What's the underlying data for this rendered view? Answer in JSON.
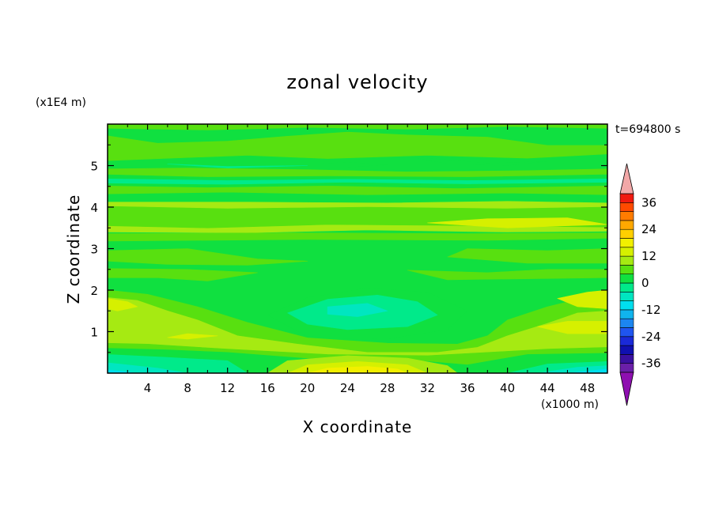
{
  "chart_data": {
    "type": "heatmap",
    "title": "zonal velocity",
    "xlabel": "X coordinate",
    "ylabel": "Z coordinate",
    "x_unit": "(x1000 m)",
    "y_unit": "(x1E4 m)",
    "time_label": "t=694800 s",
    "xlim": [
      0,
      50
    ],
    "ylim": [
      0,
      6
    ],
    "x_ticks": [
      "4",
      "8",
      "12",
      "16",
      "20",
      "24",
      "28",
      "32",
      "36",
      "40",
      "44",
      "48"
    ],
    "y_ticks": [
      "1",
      "2",
      "3",
      "4",
      "5"
    ],
    "colorbar": {
      "levels": [
        -40,
        -36,
        -32,
        -28,
        -24,
        -20,
        -16,
        -12,
        -8,
        -4,
        0,
        4,
        8,
        12,
        16,
        20,
        24,
        28,
        32,
        36,
        40
      ],
      "colors": [
        "#6a1fa8",
        "#3a10a0",
        "#1010b0",
        "#1a2ad8",
        "#1f55f0",
        "#1c86f0",
        "#10b4ee",
        "#00dfee",
        "#00e6c0",
        "#00ea8a",
        "#10e040",
        "#58e010",
        "#a6ea12",
        "#d6f000",
        "#f2f000",
        "#ffd000",
        "#ffa800",
        "#ff7c00",
        "#ff4a00",
        "#f01a10"
      ],
      "under_color": "#8e0fb0",
      "over_color": "#f2a8a8",
      "labels": [
        "36",
        "24",
        "12",
        "0",
        "-12",
        "-24",
        "-36"
      ]
    },
    "regions": [
      {
        "level": 4,
        "poly": [
          [
            0,
            5.12
          ],
          [
            14,
            5.25
          ],
          [
            22,
            5.17
          ],
          [
            32,
            5.25
          ],
          [
            42,
            5.18
          ],
          [
            50,
            5.28
          ],
          [
            50,
            6
          ],
          [
            0,
            6
          ]
        ]
      },
      {
        "level": 0,
        "poly": [
          [
            0,
            5.73
          ],
          [
            5,
            5.55
          ],
          [
            12,
            5.6
          ],
          [
            18,
            5.72
          ],
          [
            24,
            5.82
          ],
          [
            30,
            5.75
          ],
          [
            38,
            5.7
          ],
          [
            44,
            5.5
          ],
          [
            50,
            5.5
          ],
          [
            50,
            6
          ],
          [
            0,
            6
          ]
        ]
      },
      {
        "level": 4,
        "poly": [
          [
            0,
            5.9
          ],
          [
            10,
            5.86
          ],
          [
            20,
            5.92
          ],
          [
            30,
            5.88
          ],
          [
            40,
            5.94
          ],
          [
            50,
            5.9
          ],
          [
            50,
            6
          ],
          [
            0,
            6
          ]
        ]
      },
      {
        "level": 0,
        "poly": [
          [
            11,
            5.05
          ],
          [
            18,
            5.0
          ],
          [
            24,
            5.08
          ],
          [
            28,
            5.02
          ],
          [
            24,
            4.96
          ],
          [
            16,
            4.96
          ]
        ]
      },
      {
        "level": 0,
        "poly": [
          [
            30,
            5.22
          ],
          [
            38,
            5.06
          ],
          [
            44,
            5.1
          ],
          [
            40,
            5.0
          ],
          [
            34,
            5.04
          ]
        ]
      },
      {
        "level": -4,
        "poly": [
          [
            6,
            5.04
          ],
          [
            12,
            4.98
          ],
          [
            20,
            5.0
          ],
          [
            12,
            4.94
          ]
        ]
      },
      {
        "level": 4,
        "poly": [
          [
            0,
            4.32
          ],
          [
            12,
            4.36
          ],
          [
            26,
            4.3
          ],
          [
            40,
            4.34
          ],
          [
            50,
            4.3
          ],
          [
            50,
            4.92
          ],
          [
            42,
            4.88
          ],
          [
            30,
            4.85
          ],
          [
            20,
            4.9
          ],
          [
            8,
            4.94
          ],
          [
            0,
            4.92
          ]
        ]
      },
      {
        "level": 0,
        "poly": [
          [
            0,
            4.52
          ],
          [
            10,
            4.48
          ],
          [
            22,
            4.52
          ],
          [
            35,
            4.46
          ],
          [
            50,
            4.52
          ],
          [
            50,
            4.78
          ],
          [
            36,
            4.72
          ],
          [
            22,
            4.74
          ],
          [
            10,
            4.72
          ],
          [
            0,
            4.78
          ]
        ]
      },
      {
        "level": -4,
        "poly": [
          [
            0,
            4.58
          ],
          [
            12,
            4.55
          ],
          [
            24,
            4.6
          ],
          [
            36,
            4.56
          ],
          [
            50,
            4.6
          ],
          [
            50,
            4.68
          ],
          [
            36,
            4.64
          ],
          [
            24,
            4.67
          ],
          [
            12,
            4.64
          ],
          [
            0,
            4.68
          ]
        ]
      },
      {
        "level": 8,
        "poly": [
          [
            0,
            3.4
          ],
          [
            14,
            3.38
          ],
          [
            26,
            3.45
          ],
          [
            40,
            3.4
          ],
          [
            50,
            3.42
          ],
          [
            50,
            4.1
          ],
          [
            40,
            4.14
          ],
          [
            28,
            4.1
          ],
          [
            14,
            4.12
          ],
          [
            0,
            4.12
          ]
        ]
      },
      {
        "level": 4,
        "poly": [
          [
            0,
            3.55
          ],
          [
            10,
            3.5
          ],
          [
            22,
            3.58
          ],
          [
            34,
            3.56
          ],
          [
            50,
            3.52
          ],
          [
            50,
            4.0
          ],
          [
            40,
            3.96
          ],
          [
            26,
            4.0
          ],
          [
            12,
            3.96
          ],
          [
            0,
            4.02
          ]
        ]
      },
      {
        "level": 4,
        "poly": [
          [
            0,
            3.18
          ],
          [
            20,
            3.22
          ],
          [
            38,
            3.2
          ],
          [
            50,
            3.25
          ],
          [
            50,
            3.38
          ],
          [
            36,
            3.36
          ],
          [
            18,
            3.38
          ],
          [
            0,
            3.36
          ]
        ]
      },
      {
        "level": 12,
        "poly": [
          [
            40,
            3.5
          ],
          [
            46,
            3.55
          ],
          [
            50,
            3.58
          ],
          [
            46,
            3.74
          ],
          [
            38,
            3.72
          ],
          [
            32,
            3.62
          ]
        ]
      },
      {
        "level": 4,
        "poly": [
          [
            0,
            2.95
          ],
          [
            8,
            3.0
          ],
          [
            15,
            2.75
          ],
          [
            20,
            2.7
          ],
          [
            14,
            2.6
          ],
          [
            6,
            2.62
          ],
          [
            0,
            2.7
          ]
        ]
      },
      {
        "level": 4,
        "poly": [
          [
            36,
            3.0
          ],
          [
            44,
            2.95
          ],
          [
            50,
            3.0
          ],
          [
            50,
            2.65
          ],
          [
            42,
            2.65
          ],
          [
            34,
            2.8
          ]
        ]
      },
      {
        "level": 4,
        "poly": [
          [
            0,
            2.52
          ],
          [
            8,
            2.5
          ],
          [
            15,
            2.42
          ],
          [
            10,
            2.22
          ],
          [
            5,
            2.3
          ],
          [
            0,
            2.3
          ]
        ]
      },
      {
        "level": 4,
        "poly": [
          [
            30,
            2.48
          ],
          [
            38,
            2.42
          ],
          [
            44,
            2.5
          ],
          [
            50,
            2.5
          ],
          [
            50,
            2.3
          ],
          [
            44,
            2.28
          ],
          [
            34,
            2.25
          ]
        ]
      },
      {
        "level": 4,
        "poly": [
          [
            0,
            2.0
          ],
          [
            4,
            1.9
          ],
          [
            9,
            1.6
          ],
          [
            14,
            1.22
          ],
          [
            20,
            0.85
          ],
          [
            28,
            0.72
          ],
          [
            35,
            0.7
          ],
          [
            38,
            0.9
          ],
          [
            40,
            1.28
          ],
          [
            44,
            1.6
          ],
          [
            50,
            1.95
          ],
          [
            50,
            0
          ],
          [
            0,
            0
          ]
        ]
      },
      {
        "level": 8,
        "poly": [
          [
            0,
            1.82
          ],
          [
            3,
            1.75
          ],
          [
            6,
            1.5
          ],
          [
            9,
            1.28
          ],
          [
            13,
            0.9
          ],
          [
            19,
            0.7
          ],
          [
            26,
            0.5
          ],
          [
            33,
            0.5
          ],
          [
            37,
            0.62
          ],
          [
            40,
            0.9
          ],
          [
            44,
            1.2
          ],
          [
            47,
            1.45
          ],
          [
            50,
            1.5
          ],
          [
            50,
            0
          ],
          [
            0,
            0
          ]
        ]
      },
      {
        "level": 12,
        "poly": [
          [
            0,
            1.8
          ],
          [
            2,
            1.72
          ],
          [
            3,
            1.6
          ],
          [
            1,
            1.5
          ],
          [
            0,
            1.55
          ]
        ]
      },
      {
        "level": 12,
        "poly": [
          [
            45,
            1.8
          ],
          [
            48,
            1.95
          ],
          [
            50,
            2.0
          ],
          [
            50,
            1.55
          ],
          [
            47,
            1.6
          ]
        ]
      },
      {
        "level": 12,
        "poly": [
          [
            43,
            1.12
          ],
          [
            46,
            1.25
          ],
          [
            50,
            1.25
          ],
          [
            50,
            0.95
          ],
          [
            46,
            0.95
          ]
        ]
      },
      {
        "level": 12,
        "poly": [
          [
            8,
            0.95
          ],
          [
            11,
            0.9
          ],
          [
            8,
            0.82
          ],
          [
            6,
            0.86
          ]
        ]
      },
      {
        "level": 4,
        "poly": [
          [
            0,
            0.72
          ],
          [
            4,
            0.7
          ],
          [
            12,
            0.58
          ],
          [
            22,
            0.45
          ],
          [
            32,
            0.42
          ],
          [
            38,
            0.5
          ],
          [
            44,
            0.58
          ],
          [
            50,
            0.62
          ],
          [
            50,
            0
          ],
          [
            0,
            0
          ]
        ]
      },
      {
        "level": 0,
        "poly": [
          [
            0,
            0.6
          ],
          [
            6,
            0.56
          ],
          [
            12,
            0.5
          ],
          [
            20,
            0.35
          ],
          [
            30,
            0.32
          ],
          [
            36,
            0.2
          ],
          [
            42,
            0.45
          ],
          [
            50,
            0.48
          ],
          [
            50,
            0
          ],
          [
            0,
            0
          ]
        ]
      },
      {
        "level": -4,
        "poly": [
          [
            0,
            0.45
          ],
          [
            6,
            0.38
          ],
          [
            12,
            0.3
          ],
          [
            14,
            0
          ],
          [
            0,
            0
          ]
        ]
      },
      {
        "level": -4,
        "poly": [
          [
            40,
            0
          ],
          [
            44,
            0.22
          ],
          [
            50,
            0.28
          ],
          [
            50,
            0
          ]
        ]
      },
      {
        "level": -8,
        "poly": [
          [
            0,
            0.25
          ],
          [
            5,
            0.12
          ],
          [
            8,
            0
          ],
          [
            0,
            0
          ]
        ]
      },
      {
        "level": -8,
        "poly": [
          [
            43,
            0
          ],
          [
            47,
            0.14
          ],
          [
            50,
            0.18
          ],
          [
            50,
            0
          ]
        ]
      },
      {
        "level": -12,
        "poly": [
          [
            0,
            0.08
          ],
          [
            3,
            0
          ],
          [
            0,
            0
          ]
        ]
      },
      {
        "level": -12,
        "poly": [
          [
            46,
            0
          ],
          [
            50,
            0.1
          ],
          [
            50,
            0
          ]
        ]
      },
      {
        "level": 8,
        "poly": [
          [
            16,
            0
          ],
          [
            18,
            0.3
          ],
          [
            24,
            0.42
          ],
          [
            30,
            0.36
          ],
          [
            34,
            0.18
          ],
          [
            35,
            0
          ]
        ]
      },
      {
        "level": 12,
        "poly": [
          [
            18,
            0
          ],
          [
            20,
            0.2
          ],
          [
            25,
            0.28
          ],
          [
            30,
            0.2
          ],
          [
            32,
            0
          ]
        ]
      },
      {
        "level": 16,
        "poly": [
          [
            20,
            0
          ],
          [
            22,
            0.12
          ],
          [
            26,
            0.16
          ],
          [
            29,
            0.1
          ],
          [
            30,
            0
          ]
        ]
      },
      {
        "level": 0,
        "poly": [
          [
            16,
            1.4
          ],
          [
            20,
            1.82
          ],
          [
            26,
            2.05
          ],
          [
            32,
            1.95
          ],
          [
            36,
            1.5
          ],
          [
            34,
            1.05
          ],
          [
            28,
            0.82
          ],
          [
            20,
            0.88
          ]
        ]
      },
      {
        "level": -4,
        "poly": [
          [
            18,
            1.45
          ],
          [
            22,
            1.78
          ],
          [
            27,
            1.88
          ],
          [
            31,
            1.72
          ],
          [
            33,
            1.4
          ],
          [
            30,
            1.12
          ],
          [
            24,
            1.05
          ],
          [
            20,
            1.18
          ]
        ]
      },
      {
        "level": -8,
        "poly": [
          [
            22,
            1.6
          ],
          [
            26,
            1.68
          ],
          [
            28,
            1.5
          ],
          [
            25,
            1.36
          ],
          [
            22,
            1.42
          ]
        ]
      }
    ]
  }
}
